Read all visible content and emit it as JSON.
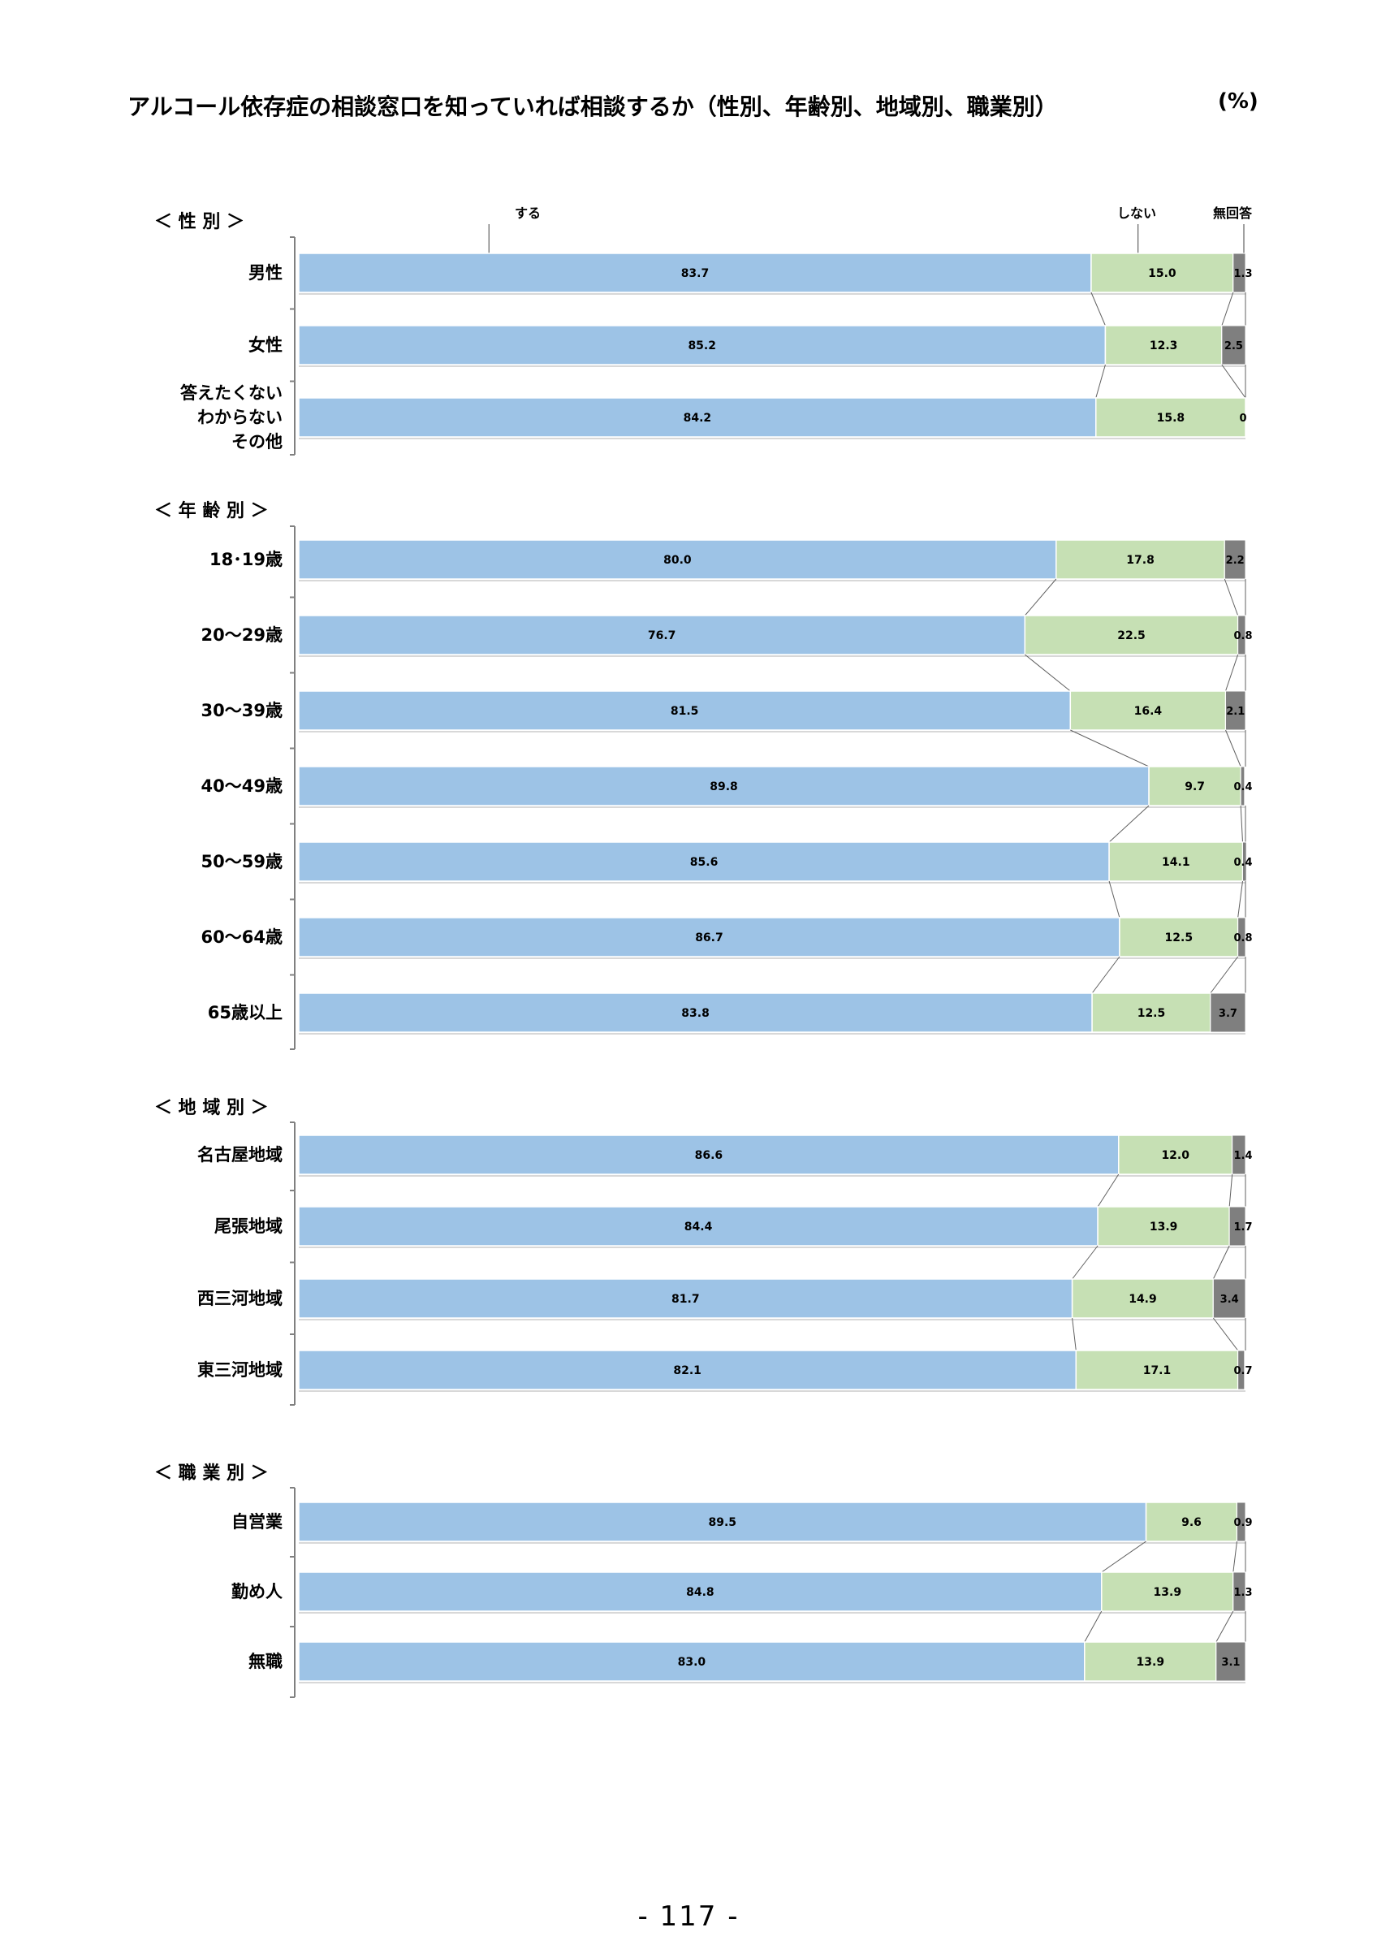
{
  "page": {
    "title": "アルコール依存症の相談窓口を知っていれば相談するか（性別、年齢別、地域別、職業別）",
    "unit": "(%)",
    "page_number": "- 117 -"
  },
  "colors": {
    "suru": "#9dc3e6",
    "shinai": "#c6e0b4",
    "mukaito": "#7f7f7f",
    "connector": "#606060",
    "axis": "#808080"
  },
  "chart_data": {
    "type": "bar",
    "orientation": "horizontal",
    "stacked": "100%",
    "unit": "%",
    "xlim": [
      0,
      100
    ],
    "legend_placement": "top",
    "series_names": [
      "する",
      "しない",
      "無回答"
    ],
    "groups": [
      {
        "label": "＜ 性 別 ＞",
        "rows": [
          {
            "label": [
              "男性"
            ],
            "values": [
              83.7,
              15.0,
              1.3
            ],
            "value_labels": [
              "83.7",
              "15.0",
              "1.3"
            ]
          },
          {
            "label": [
              "女性"
            ],
            "values": [
              85.2,
              12.3,
              2.5
            ],
            "value_labels": [
              "85.2",
              "12.3",
              "2.5"
            ]
          },
          {
            "label": [
              "答えたくない",
              "わからない",
              "その他"
            ],
            "values": [
              84.2,
              15.8,
              0
            ],
            "value_labels": [
              "84.2",
              "15.8",
              "0"
            ]
          }
        ]
      },
      {
        "label": "＜ 年 齢 別 ＞",
        "rows": [
          {
            "label": [
              "18･19歳"
            ],
            "values": [
              80.0,
              17.8,
              2.2
            ],
            "value_labels": [
              "80.0",
              "17.8",
              "2.2"
            ]
          },
          {
            "label": [
              "20～29歳"
            ],
            "values": [
              76.7,
              22.5,
              0.8
            ],
            "value_labels": [
              "76.7",
              "22.5",
              "0.8"
            ]
          },
          {
            "label": [
              "30～39歳"
            ],
            "values": [
              81.5,
              16.4,
              2.1
            ],
            "value_labels": [
              "81.5",
              "16.4",
              "2.1"
            ]
          },
          {
            "label": [
              "40～49歳"
            ],
            "values": [
              89.8,
              9.7,
              0.4
            ],
            "value_labels": [
              "89.8",
              "9.7",
              "0.4"
            ]
          },
          {
            "label": [
              "50～59歳"
            ],
            "values": [
              85.6,
              14.1,
              0.4
            ],
            "value_labels": [
              "85.6",
              "14.1",
              "0.4"
            ]
          },
          {
            "label": [
              "60～64歳"
            ],
            "values": [
              86.7,
              12.5,
              0.8
            ],
            "value_labels": [
              "86.7",
              "12.5",
              "0.8"
            ]
          },
          {
            "label": [
              "65歳以上"
            ],
            "values": [
              83.8,
              12.5,
              3.7
            ],
            "value_labels": [
              "83.8",
              "12.5",
              "3.7"
            ]
          }
        ]
      },
      {
        "label": "＜ 地 域 別 ＞",
        "rows": [
          {
            "label": [
              "名古屋地域"
            ],
            "values": [
              86.6,
              12.0,
              1.4
            ],
            "value_labels": [
              "86.6",
              "12.0",
              "1.4"
            ]
          },
          {
            "label": [
              "尾張地域"
            ],
            "values": [
              84.4,
              13.9,
              1.7
            ],
            "value_labels": [
              "84.4",
              "13.9",
              "1.7"
            ]
          },
          {
            "label": [
              "西三河地域"
            ],
            "values": [
              81.7,
              14.9,
              3.4
            ],
            "value_labels": [
              "81.7",
              "14.9",
              "3.4"
            ]
          },
          {
            "label": [
              "東三河地域"
            ],
            "values": [
              82.1,
              17.1,
              0.7
            ],
            "value_labels": [
              "82.1",
              "17.1",
              "0.7"
            ]
          }
        ]
      },
      {
        "label": "＜ 職 業 別 ＞",
        "rows": [
          {
            "label": [
              "自営業"
            ],
            "values": [
              89.5,
              9.6,
              0.9
            ],
            "value_labels": [
              "89.5",
              "9.6",
              "0.9"
            ]
          },
          {
            "label": [
              "勤め人"
            ],
            "values": [
              84.8,
              13.9,
              1.3
            ],
            "value_labels": [
              "84.8",
              "13.9",
              "1.3"
            ]
          },
          {
            "label": [
              "無職"
            ],
            "values": [
              83.0,
              13.9,
              3.1
            ],
            "value_labels": [
              "83.0",
              "13.9",
              "3.1"
            ]
          }
        ]
      }
    ]
  }
}
